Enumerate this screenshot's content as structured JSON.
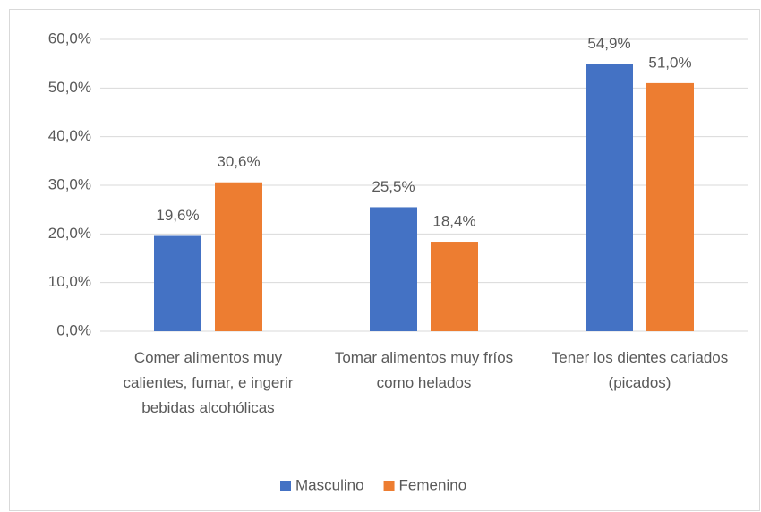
{
  "chart_data": {
    "type": "bar",
    "categories": [
      "Comer alimentos muy calientes, fumar, e ingerir bebidas alcohólicas",
      "Tomar alimentos muy fríos como helados",
      "Tener los dientes cariados (picados)"
    ],
    "series": [
      {
        "name": "Masculino",
        "color": "#4472c4",
        "values": [
          19.6,
          25.5,
          54.9
        ],
        "value_labels": [
          "19,6%",
          "25,5%",
          "54,9%"
        ]
      },
      {
        "name": "Femenino",
        "color": "#ed7d31",
        "values": [
          30.6,
          18.4,
          51.0
        ],
        "value_labels": [
          "30,6%",
          "18,4%",
          "51,0%"
        ]
      }
    ],
    "ylim": [
      0,
      60
    ],
    "yticks": [
      {
        "value": 0,
        "label": "0,0%"
      },
      {
        "value": 10,
        "label": "10,0%"
      },
      {
        "value": 20,
        "label": "20,0%"
      },
      {
        "value": 30,
        "label": "30,0%"
      },
      {
        "value": 40,
        "label": "40,0%"
      },
      {
        "value": 50,
        "label": "50,0%"
      },
      {
        "value": 60,
        "label": "60,0%"
      }
    ],
    "grid": true,
    "legend": "bottom"
  }
}
